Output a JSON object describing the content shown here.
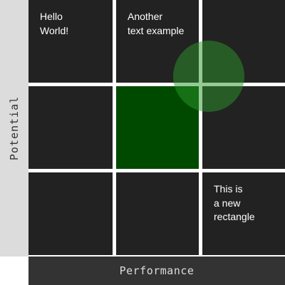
{
  "axes": {
    "y_label": "Potential",
    "x_label": "Performance"
  },
  "cells": [
    {
      "text": "Hello\nWorld!",
      "highlighted": false
    },
    {
      "text": "Another\ntext example",
      "highlighted": false
    },
    {
      "text": "",
      "highlighted": false
    },
    {
      "text": "",
      "highlighted": false
    },
    {
      "text": "",
      "highlighted": true
    },
    {
      "text": "",
      "highlighted": false
    },
    {
      "text": "",
      "highlighted": false
    },
    {
      "text": "",
      "highlighted": false
    },
    {
      "text": "This is\na new\nrectangle",
      "highlighted": false
    }
  ],
  "colors": {
    "cell": "#222222",
    "highlight_cell": "#004a00",
    "circle": "#2c962c"
  }
}
